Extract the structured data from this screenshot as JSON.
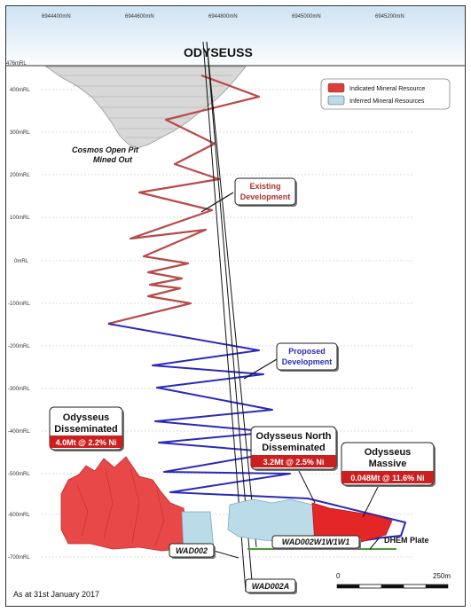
{
  "title": "ODYSEUSS",
  "northings": [
    "6944400mN",
    "6944600mN",
    "6944800mN",
    "6945000mN",
    "6945200mN"
  ],
  "rl_labels": [
    "476mRL",
    "400mRL",
    "300mRL",
    "200mRL",
    "100mRL",
    "0mRL",
    "-100mRL",
    "-200mRL",
    "-300mRL",
    "-400mRL",
    "-500mRL",
    "-600mRL",
    "-700mRL"
  ],
  "legend": {
    "indicated": {
      "label": "Indicated Mineral Resource",
      "color": "#e03a3a"
    },
    "inferred": {
      "label": "Inferred Mineral Resources",
      "color": "#bcdbe8"
    }
  },
  "open_pit": {
    "line1": "Cosmos Open Pit",
    "line2": "Mined Out"
  },
  "existing_dev": {
    "line1": "Existing",
    "line2": "Development",
    "color": "#b03030"
  },
  "proposed_dev": {
    "line1": "Proposed",
    "line2": "Development",
    "color": "#2b2bb8"
  },
  "disseminated": {
    "line1": "Odysseus",
    "line2": "Disseminated",
    "grade": "4.0Mt @ 2.2% Ni"
  },
  "north": {
    "line1": "Odysseus North",
    "line2": "Disseminated",
    "grade": "3.2Mt @ 2.5% Ni"
  },
  "massive": {
    "line1": "Odysseus",
    "line2": "Massive",
    "grade": "0.048Mt @ 11.6% Ni"
  },
  "holes": {
    "wad002": "WAD002",
    "wad002a": "WAD002A",
    "wad002w": "WAD002W1W1W1"
  },
  "dhem": "DHEM Plate",
  "date": "As at 31st January 2017",
  "scale": {
    "start": "0",
    "end": "250m"
  }
}
